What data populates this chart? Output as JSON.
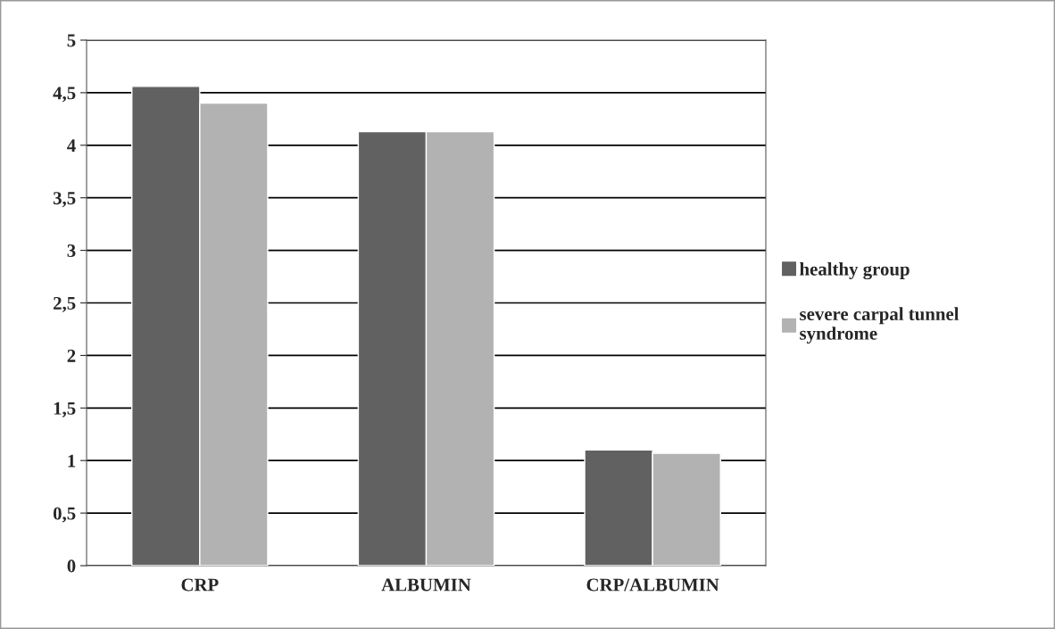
{
  "chart_data": {
    "type": "bar",
    "categories": [
      "CRP",
      "ALBUMIN",
      "CRP/ALBUMIN"
    ],
    "series": [
      {
        "name": "healthy group",
        "color": "#616161",
        "values": [
          4.56,
          4.13,
          1.1
        ]
      },
      {
        "name": "severe carpal tunnel\nsyndrome",
        "color": "#b2b2b2",
        "values": [
          4.4,
          4.13,
          1.07
        ]
      }
    ],
    "ylim": [
      0,
      5
    ],
    "yticks": [
      0,
      {
        "value": 0.5,
        "label": "0,5"
      },
      1,
      {
        "value": 1.5,
        "label": "1,5"
      },
      2,
      {
        "value": 2.5,
        "label": "2,5"
      },
      3,
      {
        "value": 3.5,
        "label": "3,5"
      },
      4,
      {
        "value": 4.5,
        "label": "4,5"
      },
      5
    ],
    "grid": "y",
    "legend": "right"
  }
}
